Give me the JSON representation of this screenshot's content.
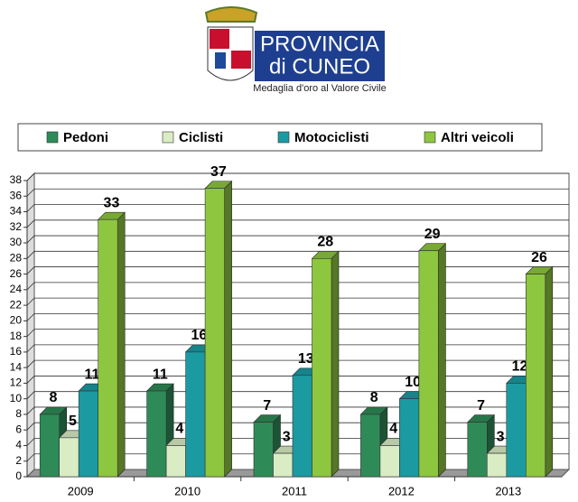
{
  "logo": {
    "line1": "PROVINCIA",
    "line2": "di CUNEO",
    "motto": "Medaglia d'oro al Valore Civile"
  },
  "chart_data": {
    "type": "bar3d",
    "categories": [
      "2009",
      "2010",
      "2011",
      "2012",
      "2013"
    ],
    "series": [
      {
        "name": "Pedoni",
        "color": "#2e8b57",
        "values": [
          8,
          11,
          7,
          8,
          7
        ]
      },
      {
        "name": "Ciclisti",
        "color": "#d9ecc4",
        "values": [
          5,
          4,
          3,
          4,
          3
        ]
      },
      {
        "name": "Motociclisti",
        "color": "#1b9aa2",
        "values": [
          11,
          16,
          13,
          10,
          12
        ]
      },
      {
        "name": "Altri veicoli",
        "color": "#8dc63f",
        "values": [
          33,
          37,
          28,
          29,
          26
        ]
      }
    ],
    "ylim": [
      0,
      38
    ],
    "yticks": [
      0,
      2,
      4,
      6,
      8,
      10,
      12,
      14,
      16,
      18,
      20,
      22,
      24,
      26,
      28,
      30,
      32,
      34,
      36,
      38
    ],
    "grid": true
  }
}
